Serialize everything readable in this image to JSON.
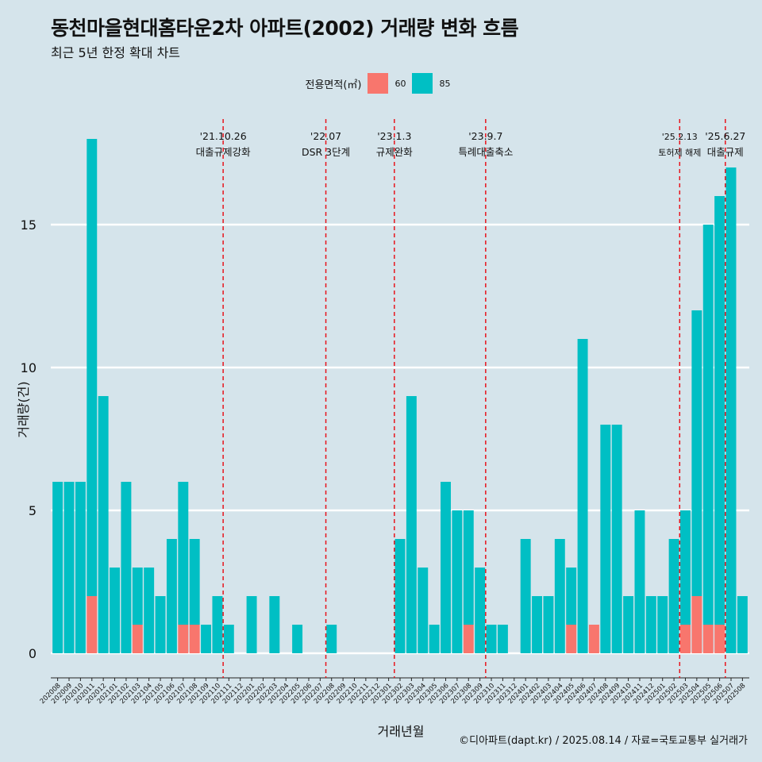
{
  "chart_data": {
    "type": "bar",
    "title": "동천마을현대홈타운2차 아파트(2002) 거래량 변화 흐름",
    "subtitle": "최근 5년 한정 확대 차트",
    "xlabel": "거래년월",
    "ylabel": "거래량(건)",
    "ylim": [
      0,
      17
    ],
    "yticks": [
      0,
      5,
      10,
      15
    ],
    "grid": true,
    "legend_position": "top",
    "legend_title": "전용면적(㎡)",
    "caption": "©디아파트(dapt.kr) / 2025.08.14 / 자료=국토교통부 실거래가",
    "categories": [
      "202008",
      "202009",
      "202010",
      "202011",
      "202012",
      "202101",
      "202102",
      "202103",
      "202104",
      "202105",
      "202106",
      "202107",
      "202108",
      "202109",
      "202110",
      "202111",
      "202112",
      "202201",
      "202202",
      "202203",
      "202204",
      "202205",
      "202206",
      "202207",
      "202208",
      "202209",
      "202210",
      "202211",
      "202212",
      "202301",
      "202302",
      "202303",
      "202304",
      "202305",
      "202306",
      "202307",
      "202308",
      "202309",
      "202310",
      "202311",
      "202312",
      "202401",
      "202402",
      "202403",
      "202404",
      "202405",
      "202406",
      "202407",
      "202408",
      "202409",
      "202410",
      "202411",
      "202412",
      "202501",
      "202502",
      "202503",
      "202504",
      "202505",
      "202506",
      "202507",
      "202508"
    ],
    "series": [
      {
        "name": "60",
        "color": "#f8766d",
        "values": [
          0,
          0,
          0,
          2,
          0,
          0,
          0,
          1,
          0,
          0,
          0,
          1,
          1,
          0,
          0,
          0,
          0,
          0,
          0,
          0,
          0,
          0,
          0,
          0,
          0,
          0,
          0,
          0,
          0,
          0,
          0,
          0,
          0,
          0,
          0,
          0,
          1,
          0,
          0,
          0,
          0,
          0,
          0,
          0,
          0,
          1,
          0,
          1,
          0,
          0,
          0,
          0,
          0,
          0,
          0,
          1,
          2,
          1,
          1,
          0,
          0
        ]
      },
      {
        "name": "85",
        "color": "#00bfc4",
        "values": [
          6,
          6,
          6,
          16,
          9,
          3,
          6,
          2,
          3,
          2,
          4,
          5,
          3,
          1,
          2,
          1,
          0,
          2,
          0,
          2,
          0,
          1,
          0,
          0,
          1,
          0,
          0,
          0,
          0,
          0,
          4,
          9,
          3,
          1,
          6,
          5,
          4,
          3,
          1,
          1,
          0,
          4,
          2,
          2,
          4,
          2,
          11,
          0,
          8,
          8,
          2,
          5,
          2,
          2,
          4,
          4,
          10,
          14,
          15,
          17,
          2
        ]
      }
    ],
    "events": [
      {
        "date": "'21.10.26",
        "label": "대출규제강화",
        "category": "202110"
      },
      {
        "date": "'22.07",
        "label": "DSR 3단계",
        "category": "202207"
      },
      {
        "date": "'23.1.3",
        "label": "규제완화",
        "category": "202301"
      },
      {
        "date": "'23.9.7",
        "label": "특례대출축소",
        "category": "202309"
      },
      {
        "date": "'25.2.13",
        "label": "토허제 해제",
        "category": "202502"
      },
      {
        "date": "'25.6.27",
        "label": "대출규제",
        "category": "202506"
      }
    ],
    "event_line_color": "#e8141c"
  }
}
